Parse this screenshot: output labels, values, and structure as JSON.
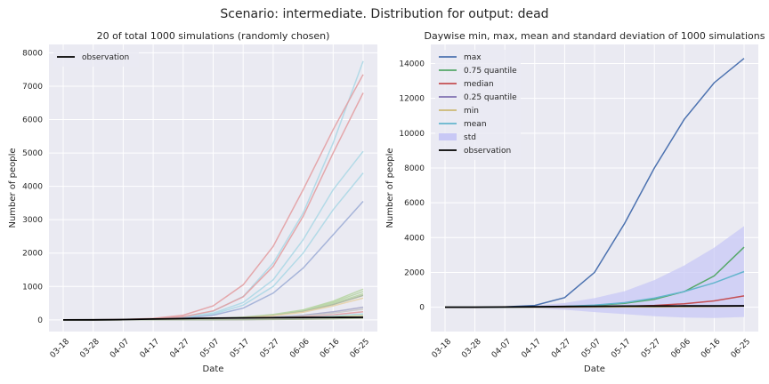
{
  "suptitle": "Scenario: intermediate. Distribution for output: dead",
  "colors": {
    "panel_bg": "#EAEAF2",
    "grid": "#FFFFFF",
    "observation": "#000000",
    "std_fill": "#C8C8F5"
  },
  "chart_data": [
    {
      "type": "line",
      "title": "20 of total 1000 simulations (randomly chosen)",
      "xlabel": "Date",
      "ylabel": "Number of people",
      "x_dates": [
        "03-18",
        "03-28",
        "04-07",
        "04-17",
        "04-27",
        "05-07",
        "05-17",
        "05-27",
        "06-06",
        "06-16",
        "06-25"
      ],
      "x_ticks": [
        "03-18",
        "03-28",
        "04-07",
        "04-17",
        "04-27",
        "05-07",
        "05-17",
        "05-27",
        "06-06",
        "06-16",
        "06-25"
      ],
      "y_ticks": [
        0,
        1000,
        2000,
        3000,
        4000,
        5000,
        6000,
        7000,
        8000
      ],
      "ylim": [
        -350,
        8250
      ],
      "grid": true,
      "legend": {
        "position": "top-left",
        "entries": [
          "observation"
        ]
      },
      "series": [
        {
          "color": "#ADD8E6",
          "values": [
            0,
            1,
            8,
            30,
            90,
            260,
            700,
            1700,
            3200,
            5300,
            7750
          ]
        },
        {
          "color": "#ADD8E6",
          "values": [
            0,
            1,
            7,
            25,
            70,
            200,
            520,
            1200,
            2400,
            3900,
            5050
          ]
        },
        {
          "color": "#ADD8E6",
          "values": [
            0,
            1,
            6,
            22,
            60,
            170,
            440,
            1000,
            2000,
            3300,
            4400
          ]
        },
        {
          "color": "#E3A0A3",
          "values": [
            0,
            2,
            12,
            45,
            140,
            420,
            1050,
            2200,
            3900,
            5700,
            7350
          ]
        },
        {
          "color": "#E3A0A3",
          "values": [
            0,
            1,
            8,
            30,
            95,
            270,
            690,
            1600,
            3100,
            5000,
            6800
          ]
        },
        {
          "color": "#9EAED6",
          "values": [
            0,
            1,
            5,
            18,
            50,
            140,
            350,
            800,
            1550,
            2550,
            3550
          ]
        },
        {
          "color": "#B9D6A6",
          "values": [
            0,
            0,
            2,
            6,
            15,
            35,
            80,
            160,
            300,
            560,
            920
          ]
        },
        {
          "color": "#B9D6A6",
          "values": [
            0,
            0,
            2,
            6,
            14,
            33,
            75,
            150,
            290,
            530,
            850
          ]
        },
        {
          "color": "#B9D6A6",
          "values": [
            0,
            0,
            2,
            5,
            13,
            30,
            70,
            140,
            270,
            500,
            780
          ]
        },
        {
          "color": "#A9B79A",
          "values": [
            0,
            0,
            2,
            5,
            12,
            28,
            65,
            130,
            250,
            460,
            730
          ]
        },
        {
          "color": "#E7D3A8",
          "values": [
            0,
            0,
            2,
            5,
            12,
            27,
            60,
            120,
            230,
            420,
            650
          ]
        },
        {
          "color": "#A9A9C9",
          "values": [
            0,
            0,
            1,
            3,
            8,
            18,
            38,
            75,
            140,
            240,
            380
          ]
        },
        {
          "color": "#C8C8C8",
          "values": [
            0,
            0,
            1,
            3,
            7,
            15,
            32,
            62,
            115,
            200,
            320
          ]
        },
        {
          "color": "#E3A0A3",
          "values": [
            0,
            0,
            1,
            2,
            6,
            12,
            25,
            48,
            88,
            150,
            240
          ]
        },
        {
          "color": "#ADD8E6",
          "values": [
            0,
            0,
            1,
            2,
            5,
            10,
            20,
            38,
            70,
            115,
            180
          ]
        },
        {
          "color": "#B9D6A6",
          "values": [
            0,
            0,
            1,
            2,
            4,
            8,
            16,
            30,
            55,
            90,
            140
          ]
        },
        {
          "color": "#E7D3A8",
          "values": [
            0,
            0,
            1,
            2,
            4,
            7,
            14,
            25,
            45,
            75,
            115
          ]
        },
        {
          "color": "#9EAED6",
          "values": [
            0,
            0,
            1,
            1,
            3,
            6,
            11,
            20,
            35,
            58,
            90
          ]
        },
        {
          "color": "#C8C8C8",
          "values": [
            0,
            0,
            1,
            1,
            3,
            5,
            9,
            16,
            28,
            45,
            70
          ]
        },
        {
          "color": "#A9B79A",
          "values": [
            0,
            0,
            1,
            1,
            2,
            4,
            7,
            12,
            20,
            32,
            50
          ]
        },
        {
          "name": "observation",
          "color": "#000000",
          "values": [
            0,
            2,
            10,
            25,
            40,
            52,
            60,
            65,
            70,
            73,
            75
          ]
        }
      ]
    },
    {
      "type": "line",
      "title": "Daywise min, max, mean and standard deviation of 1000 simulations",
      "xlabel": "Date",
      "ylabel": "Number of people",
      "x_dates": [
        "03-18",
        "03-28",
        "04-07",
        "04-17",
        "04-27",
        "05-07",
        "05-17",
        "05-27",
        "06-06",
        "06-16",
        "06-25"
      ],
      "x_ticks": [
        "03-18",
        "03-28",
        "04-07",
        "04-17",
        "04-27",
        "05-07",
        "05-17",
        "05-27",
        "06-06",
        "06-16",
        "06-25"
      ],
      "y_ticks": [
        0,
        2000,
        4000,
        6000,
        8000,
        10000,
        12000,
        14000
      ],
      "ylim": [
        -1400,
        15100
      ],
      "grid": true,
      "legend": {
        "position": "top-left",
        "entries": [
          "max",
          "0.75 quantile",
          "median",
          "0.25 quantile",
          "min",
          "mean",
          "std",
          "observation"
        ]
      },
      "series": [
        {
          "name": "max",
          "color": "#4C72B0",
          "values": [
            0,
            2,
            15,
            100,
            550,
            2000,
            4800,
            8000,
            10800,
            12900,
            14300
          ]
        },
        {
          "name": "0.75 quantile",
          "color": "#55A868",
          "values": [
            0,
            0,
            3,
            12,
            40,
            100,
            220,
            450,
            900,
            1800,
            3450
          ]
        },
        {
          "name": "median",
          "color": "#C44E52",
          "values": [
            0,
            0,
            1,
            4,
            10,
            25,
            50,
            100,
            200,
            360,
            650
          ]
        },
        {
          "name": "0.25 quantile",
          "color": "#8172B2",
          "values": [
            0,
            0,
            1,
            2,
            5,
            10,
            18,
            30,
            48,
            70,
            95
          ]
        },
        {
          "name": "min",
          "color": "#CCB974",
          "values": [
            0,
            0,
            1,
            2,
            4,
            8,
            14,
            22,
            32,
            45,
            60
          ]
        },
        {
          "name": "mean",
          "color": "#64B5CD",
          "values": [
            0,
            1,
            4,
            15,
            45,
            120,
            260,
            520,
            900,
            1400,
            2050
          ]
        },
        {
          "name": "observation",
          "color": "#000000",
          "values": [
            0,
            2,
            10,
            25,
            40,
            52,
            60,
            65,
            70,
            73,
            75
          ]
        }
      ],
      "std_band": {
        "name": "std",
        "lower": [
          0,
          -5,
          -20,
          -60,
          -150,
          -280,
          -400,
          -520,
          -600,
          -620,
          -560
        ],
        "upper": [
          0,
          7,
          28,
          90,
          240,
          520,
          920,
          1560,
          2400,
          3420,
          4660
        ]
      }
    }
  ]
}
